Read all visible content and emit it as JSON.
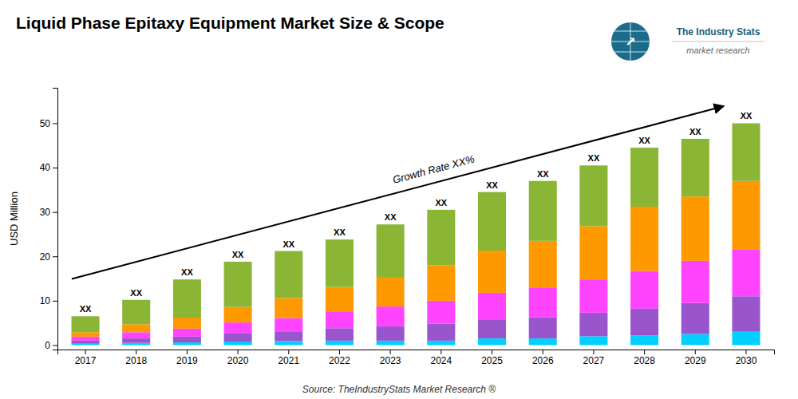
{
  "chart_data": {
    "type": "bar",
    "stacked": true,
    "grid": false,
    "title": "Liquid Phase Epitaxy Equipment Market Size & Scope",
    "ylabel": "USD Million",
    "source": "Source: TheIndustryStats Market Research ®",
    "categories": [
      "2017",
      "2018",
      "2019",
      "2020",
      "2021",
      "2022",
      "2023",
      "2024",
      "2025",
      "2026",
      "2027",
      "2028",
      "2029",
      "2030"
    ],
    "series": [
      {
        "color": "#00CFFF",
        "values": [
          0.3,
          0.5,
          0.6,
          0.8,
          0.9,
          1.0,
          1.0,
          1.0,
          1.5,
          1.5,
          2.0,
          2.2,
          2.5,
          3.0
        ]
      },
      {
        "color": "#9955CC",
        "values": [
          0.7,
          1.0,
          1.3,
          1.8,
          2.2,
          2.8,
          3.2,
          3.8,
          4.3,
          4.8,
          5.3,
          6.0,
          7.0,
          8.0
        ]
      },
      {
        "color": "#FF44FF",
        "values": [
          0.9,
          1.4,
          1.8,
          2.5,
          3.0,
          3.8,
          4.5,
          5.2,
          6.0,
          6.7,
          7.5,
          8.5,
          9.5,
          10.5
        ]
      },
      {
        "color": "#FF9900",
        "values": [
          1.0,
          1.8,
          2.5,
          3.5,
          4.5,
          5.5,
          6.5,
          8.0,
          9.5,
          10.5,
          12.0,
          14.5,
          14.5,
          15.5
        ]
      },
      {
        "color": "#8BB535",
        "values": [
          3.6,
          5.5,
          8.6,
          10.2,
          10.6,
          10.7,
          12.0,
          12.5,
          13.2,
          13.5,
          13.7,
          13.3,
          13.0,
          13.0
        ]
      }
    ],
    "ylim": [
      -1,
      58
    ],
    "yticks": [
      0,
      10,
      20,
      30,
      40,
      50
    ],
    "annotations": [
      {
        "text": "XX",
        "x": "2017"
      },
      {
        "text": "XX",
        "x": "2018"
      },
      {
        "text": "XX",
        "x": "2019"
      },
      {
        "text": "XX",
        "x": "2020"
      },
      {
        "text": "XX",
        "x": "2021"
      },
      {
        "text": "XX",
        "x": "2022"
      },
      {
        "text": "XX",
        "x": "2023"
      },
      {
        "text": "XX",
        "x": "2024"
      },
      {
        "text": "XX",
        "x": "2025"
      },
      {
        "text": "XX",
        "x": "2026"
      },
      {
        "text": "XX",
        "x": "2027"
      },
      {
        "text": "XX",
        "x": "2028"
      },
      {
        "text": "XX",
        "x": "2029"
      },
      {
        "text": "XX",
        "x": "2030"
      },
      {
        "text": "Growth Rate XX%",
        "arrow": true
      }
    ],
    "logo": {
      "icon": "↗",
      "title": "The Industry Stats",
      "subtitle": "market research"
    }
  }
}
